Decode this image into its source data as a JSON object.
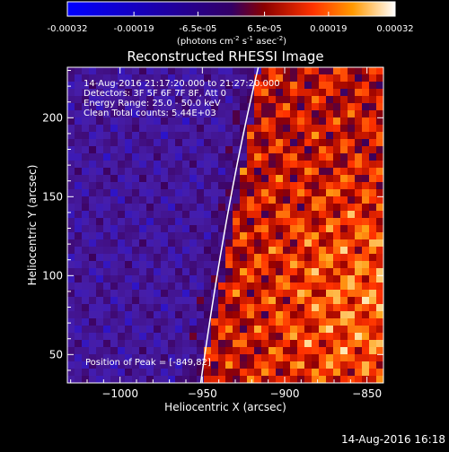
{
  "colorbar": {
    "tick_labels": [
      "-0.00032",
      "-0.00019",
      "-6.5e-05",
      "6.5e-05",
      "0.00019",
      "0.00032"
    ],
    "tick_values": [
      -0.00032,
      -0.00019,
      -6.5e-05,
      6.5e-05,
      0.00019,
      0.00032
    ],
    "min": -0.00032,
    "max": 0.00032,
    "units_prefix": "(photons cm",
    "units_exp1": "-2",
    "units_mid": " s",
    "units_exp2": "-1",
    "units_mid2": " asec",
    "units_exp3": "-2",
    "units_suffix": ")"
  },
  "chart_data": {
    "type": "heatmap",
    "title": "Reconstructed RHESSI Image",
    "xlabel": "Heliocentric X (arcsec)",
    "ylabel": "Heliocentric Y (arcsec)",
    "xlim": [
      -1032,
      -840
    ],
    "ylim": [
      32,
      232
    ],
    "x_ticks": [
      -1000,
      -950,
      -900,
      -850
    ],
    "x_tick_labels": [
      "−1000",
      "−950",
      "−900",
      "−850"
    ],
    "y_ticks": [
      50,
      100,
      150,
      200
    ],
    "y_tick_labels": [
      "50",
      "100",
      "150",
      "200"
    ],
    "grid": false,
    "colormap": "rhessi-thermal",
    "annotations": [
      "14-Aug-2016 21:17:20.000 to 21:27:20.000",
      "Detectors: 3F 5F 6F 7F 8F, Att 0",
      "Energy Range: 25.0 - 50.0 keV",
      "Clean      Total counts: 5.44E+03"
    ],
    "peak_label": "Position of Peak = [-849,82]",
    "peak": [
      -849,
      82
    ],
    "limb": [
      [
        -916,
        232
      ],
      [
        -935,
        150
      ],
      [
        -951,
        32
      ]
    ]
  },
  "footer": {
    "timestamp": "14-Aug-2016 16:18"
  }
}
